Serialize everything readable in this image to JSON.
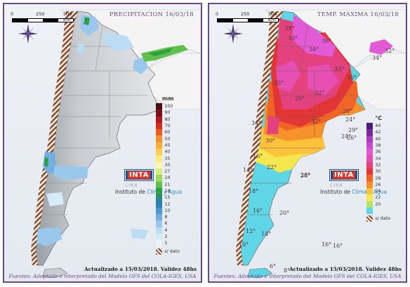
{
  "left_panel": {
    "title": "PRECIPITACION 16/03/18",
    "scale_labels": [
      "0",
      "250",
      "500 Km"
    ],
    "updated": "Actualizado a 15/03/2018. Validez 48hs",
    "source": "Fuentes: Adaptado e interpretado del Modelo GFS del COLA-IGES, USA",
    "legend": {
      "unit": "mm",
      "items": [
        {
          "label": "100",
          "color": "#4a0d14"
        },
        {
          "label": "90",
          "color": "#7a1019"
        },
        {
          "label": "80",
          "color": "#b01a1f"
        },
        {
          "label": "70",
          "color": "#d62c22"
        },
        {
          "label": "60",
          "color": "#ee5b21"
        },
        {
          "label": "50",
          "color": "#f6902a"
        },
        {
          "label": "45",
          "color": "#f9b038"
        },
        {
          "label": "40",
          "color": "#fbcf4e"
        },
        {
          "label": "35",
          "color": "#fde97a"
        },
        {
          "label": "30",
          "color": "#fef5b0"
        },
        {
          "label": "27",
          "color": "#d7ec7a"
        },
        {
          "label": "24",
          "color": "#9ed95c"
        },
        {
          "label": "21",
          "color": "#5fc149"
        },
        {
          "label": "18",
          "color": "#2ea043"
        },
        {
          "label": "15",
          "color": "#2d8c7e"
        },
        {
          "label": "12",
          "color": "#2c7fb8"
        },
        {
          "label": "10",
          "color": "#4d97d1"
        },
        {
          "label": "8",
          "color": "#72afe0"
        },
        {
          "label": "6",
          "color": "#99c8ec"
        },
        {
          "label": "4",
          "color": "#bcdcf3"
        },
        {
          "label": "2",
          "color": "#d6ebf8"
        },
        {
          "label": "1",
          "color": "#e8f4fb"
        }
      ],
      "nodata": "s/ dato"
    },
    "logo": {
      "inta": "INTA",
      "cirn": "CIRN",
      "instituto": "Instituto de",
      "instituto_highlight": "Clima y Agua"
    }
  },
  "right_panel": {
    "title": "TEMP. MAXIMA 16/03/18",
    "scale_labels": [
      "0",
      "250",
      "500 Km"
    ],
    "updated": "Actualizado a 15/03/2018. Validez 48hs",
    "source": "Fuentes: Adaptado e interpretado del Modelo GFS del COLA-IGES, USA",
    "legend": {
      "unit": "°C",
      "items": [
        {
          "label": "44",
          "color": "#4a1f7a"
        },
        {
          "label": "42",
          "color": "#7b2a9c"
        },
        {
          "label": "40",
          "color": "#a63dbe"
        },
        {
          "label": "38",
          "color": "#c84ad3"
        },
        {
          "label": "36",
          "color": "#e35ad6"
        },
        {
          "label": "34",
          "color": "#e64fb2"
        },
        {
          "label": "32",
          "color": "#e3427f"
        },
        {
          "label": "30",
          "color": "#e33535"
        },
        {
          "label": "28",
          "color": "#f06428"
        },
        {
          "label": "26",
          "color": "#f7912c"
        },
        {
          "label": "24",
          "color": "#fbc23a"
        },
        {
          "label": "22",
          "color": "#f5e74e"
        },
        {
          "label": "20",
          "color": "#b5e46a"
        },
        {
          "label": "",
          "color": "#5ed6e6"
        }
      ],
      "nodata": "s/ dato"
    },
    "temperatures": [
      {
        "label": "28°"
      },
      {
        "label": "30°"
      },
      {
        "label": "36°"
      },
      {
        "label": "34°"
      },
      {
        "label": "32°"
      },
      {
        "label": "34°"
      },
      {
        "label": "33°"
      },
      {
        "label": "33°"
      },
      {
        "label": "30°"
      },
      {
        "label": "32°"
      },
      {
        "label": "26°"
      },
      {
        "label": "32°"
      },
      {
        "label": "26°"
      },
      {
        "label": "24°"
      },
      {
        "label": "29°"
      },
      {
        "label": "24°"
      },
      {
        "label": "26°"
      },
      {
        "label": "34°"
      },
      {
        "label": "30°"
      },
      {
        "label": "28°"
      },
      {
        "label": "22°"
      },
      {
        "label": "14°"
      },
      {
        "label": "16°"
      },
      {
        "label": "28°"
      },
      {
        "label": "18°"
      },
      {
        "label": "16°"
      },
      {
        "label": "20°"
      },
      {
        "label": "12°"
      },
      {
        "label": "14°"
      },
      {
        "label": "10°"
      },
      {
        "label": "16°"
      },
      {
        "label": "16°"
      },
      {
        "label": "6°"
      },
      {
        "label": "8°"
      }
    ],
    "logo": {
      "inta": "INTA",
      "cirn": "CIRN",
      "instituto": "Instituto de",
      "instituto_highlight": "Clima y Agua"
    }
  }
}
